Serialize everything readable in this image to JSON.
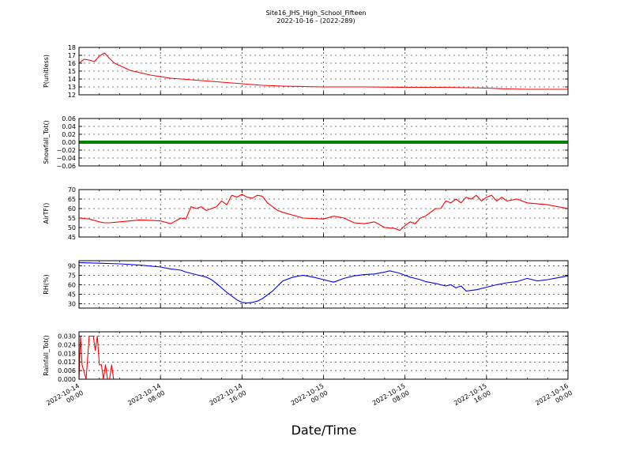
{
  "title_line1": "Site16_JHS_High_School_Fifteen",
  "title_line2": "2022-10-16 - (2022-289)",
  "xlabel": "Date/Time",
  "x_ticks": [
    {
      "line1": "2022-10-14",
      "line2": "00:00"
    },
    {
      "line1": "2022-10-14",
      "line2": "08:00"
    },
    {
      "line1": "2022-10-14",
      "line2": "16:00"
    },
    {
      "line1": "2022-10-15",
      "line2": "00:00"
    },
    {
      "line1": "2022-10-15",
      "line2": "08:00"
    },
    {
      "line1": "2022-10-15",
      "line2": "16:00"
    },
    {
      "line1": "2022-10-16",
      "line2": "00:00"
    }
  ],
  "chart_data": [
    {
      "type": "line",
      "ylabel": "P(unitless)",
      "color": "#ff0000",
      "ylim": [
        12,
        18
      ],
      "yticks": [
        12,
        13,
        14,
        15,
        16,
        17,
        18
      ],
      "ytick_labels": [
        "12",
        "13",
        "14",
        "15",
        "16",
        "17",
        "18"
      ],
      "grid": true,
      "x_hours": [
        0,
        0.5,
        1,
        1.5,
        2,
        2.5,
        3,
        3.5,
        4,
        4.5,
        5,
        6,
        7,
        8,
        9,
        10,
        12,
        14,
        16,
        18,
        20,
        22,
        24,
        28,
        32,
        36,
        40,
        42,
        44,
        48
      ],
      "values": [
        16.0,
        16.5,
        16.4,
        16.2,
        16.9,
        17.3,
        16.6,
        16.0,
        15.7,
        15.4,
        15.1,
        14.8,
        14.5,
        14.3,
        14.1,
        14.0,
        13.8,
        13.6,
        13.4,
        13.2,
        13.1,
        13.05,
        13.0,
        13.0,
        12.95,
        12.95,
        12.85,
        12.75,
        12.7,
        12.7
      ]
    },
    {
      "type": "line",
      "ylabel": "Snowfall_Tot()",
      "color": "#008000",
      "ylim": [
        -0.06,
        0.06
      ],
      "yticks": [
        -0.06,
        -0.04,
        -0.02,
        0.0,
        0.02,
        0.04,
        0.06
      ],
      "ytick_labels": [
        "−0.06",
        "−0.04",
        "−0.02",
        "0.00",
        "0.02",
        "0.04",
        "0.06"
      ],
      "grid": true,
      "x_hours": [
        0,
        48
      ],
      "values": [
        0,
        0
      ]
    },
    {
      "type": "line",
      "ylabel": "AirTF()",
      "color": "#ff0000",
      "ylim": [
        45,
        70
      ],
      "yticks": [
        45,
        50,
        55,
        60,
        65,
        70
      ],
      "ytick_labels": [
        "45",
        "50",
        "55",
        "60",
        "65",
        "70"
      ],
      "grid": true,
      "x_hours": [
        0,
        1,
        2,
        2.5,
        3,
        4,
        6,
        8,
        9,
        10,
        10.5,
        11,
        11.5,
        12,
        12.5,
        13,
        13.5,
        14,
        14.5,
        15,
        15.5,
        16,
        16.5,
        17,
        17.5,
        18,
        18.5,
        19,
        19.5,
        20,
        21,
        22,
        24,
        25,
        26,
        27,
        28,
        29,
        30,
        31,
        31.5,
        32,
        32.5,
        33,
        33.5,
        34,
        34.5,
        35,
        35.5,
        36,
        36.5,
        37,
        37.5,
        38,
        38.5,
        39,
        39.5,
        40,
        40.5,
        41,
        41.5,
        42,
        43,
        44,
        46,
        48
      ],
      "values": [
        55,
        54.5,
        53,
        52.5,
        52.5,
        53,
        54,
        53.5,
        52,
        55,
        54.5,
        61,
        60,
        61,
        59,
        60,
        61,
        64,
        62,
        67,
        66,
        67.5,
        66,
        65.5,
        67,
        66.5,
        63,
        61,
        59,
        58,
        56.5,
        55,
        54.5,
        56,
        55,
        52.5,
        52,
        53,
        50,
        49.5,
        48.5,
        51,
        53,
        52,
        55,
        56,
        58,
        60,
        60,
        64,
        63,
        65,
        63,
        66,
        65,
        67,
        64,
        66,
        67,
        64,
        66,
        64,
        65,
        63,
        62,
        60
      ]
    },
    {
      "type": "line",
      "ylabel": "RH(%)",
      "color": "#0000ff",
      "ylim": [
        23,
        98
      ],
      "yticks": [
        30,
        45,
        60,
        75,
        90
      ],
      "ytick_labels": [
        "30",
        "45",
        "60",
        "75",
        "90"
      ],
      "grid": true,
      "x_hours": [
        0,
        2,
        4,
        6,
        8,
        9,
        10,
        10.5,
        11,
        11.5,
        12,
        12.5,
        13,
        13.5,
        14,
        14.5,
        15,
        15.5,
        16,
        16.5,
        17,
        17.5,
        18,
        19,
        20,
        21,
        22,
        23,
        24,
        25,
        26,
        27,
        28,
        29,
        30,
        30.5,
        31,
        31.5,
        32,
        32.5,
        33,
        33.5,
        34,
        35,
        35.5,
        36,
        36.5,
        37,
        37.5,
        38,
        39,
        40,
        41,
        42,
        43,
        44,
        45,
        46,
        47,
        48
      ],
      "values": [
        95,
        94,
        93,
        91,
        88,
        85,
        83,
        80,
        78,
        76,
        74,
        72,
        68,
        62,
        55,
        48,
        42,
        36,
        32,
        31,
        32,
        34,
        38,
        50,
        66,
        72,
        75,
        72,
        68,
        64,
        70,
        74,
        76,
        77,
        80,
        82,
        80,
        78,
        75,
        72,
        70,
        68,
        65,
        62,
        60,
        58,
        60,
        55,
        58,
        50,
        52,
        56,
        60,
        63,
        65,
        70,
        66,
        68,
        71,
        74
      ]
    },
    {
      "type": "line",
      "ylabel": "Rainfall_Tot()",
      "color": "#ff0000",
      "ylim": [
        0,
        0.033
      ],
      "yticks": [
        0.0,
        0.006,
        0.012,
        0.018,
        0.024,
        0.03
      ],
      "ytick_labels": [
        "0.000",
        "0.006",
        "0.012",
        "0.018",
        "0.024",
        "0.030"
      ],
      "grid": true,
      "x_hours": [
        0,
        0.15,
        0.3,
        0.5,
        0.7,
        1.0,
        1.2,
        1.4,
        1.6,
        1.8,
        2.0,
        2.2,
        2.4,
        2.6,
        2.8,
        3.0,
        3.2,
        3.4,
        3.6,
        3.8,
        4.0,
        48
      ],
      "values": [
        0.0,
        0.03,
        0.01,
        0.005,
        0.0,
        0.03,
        0.03,
        0.03,
        0.02,
        0.03,
        0.01,
        0.01,
        0.0,
        0.01,
        0.0,
        0.0,
        0.01,
        0.0,
        0.0,
        0.0,
        0.0,
        0.0
      ]
    }
  ]
}
